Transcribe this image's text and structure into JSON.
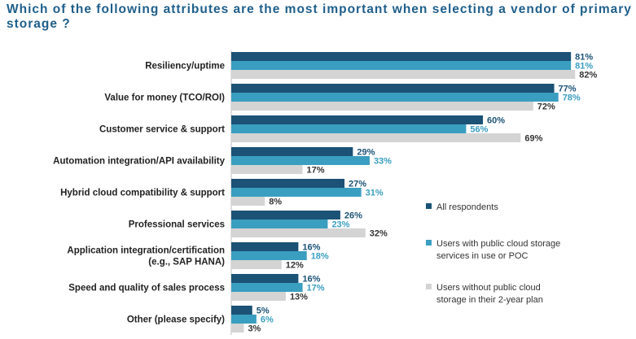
{
  "title": "Which of the following attributes are the most important when selecting a vendor of primary storage ?",
  "chart_data": {
    "type": "bar",
    "orientation": "horizontal",
    "title": "Which of the following attributes are the most important when selecting a vendor of primary storage ?",
    "categories": [
      [
        "Resiliency/uptime"
      ],
      [
        "Value for money (TCO/ROI)"
      ],
      [
        "Customer service & support"
      ],
      [
        "Automation integration/API availability"
      ],
      [
        "Hybrid cloud compatibility & support"
      ],
      [
        "Professional services"
      ],
      [
        "Application integration/certification",
        "(e.g., SAP HANA)"
      ],
      [
        "Speed and quality of sales process"
      ],
      [
        "Other (please specify)"
      ]
    ],
    "series": [
      {
        "name": "All respondents",
        "color": "#1b5276",
        "label_color": "#1b5276",
        "values": [
          81,
          77,
          60,
          29,
          27,
          26,
          16,
          16,
          5
        ]
      },
      {
        "name": [
          "Users with public cloud storage",
          "services in use or POC"
        ],
        "color": "#3a9ec0",
        "label_color": "#3a9ec0",
        "values": [
          81,
          78,
          56,
          33,
          31,
          23,
          18,
          17,
          6
        ]
      },
      {
        "name": [
          "Users without public cloud",
          "storage in their 2-year plan"
        ],
        "color": "#d4d4d4",
        "label_color": "#333333",
        "values": [
          82,
          72,
          69,
          17,
          8,
          32,
          12,
          13,
          3
        ]
      }
    ],
    "value_suffix": "%",
    "xlim": [
      0,
      100
    ],
    "grid": false,
    "legend_position": "right"
  }
}
